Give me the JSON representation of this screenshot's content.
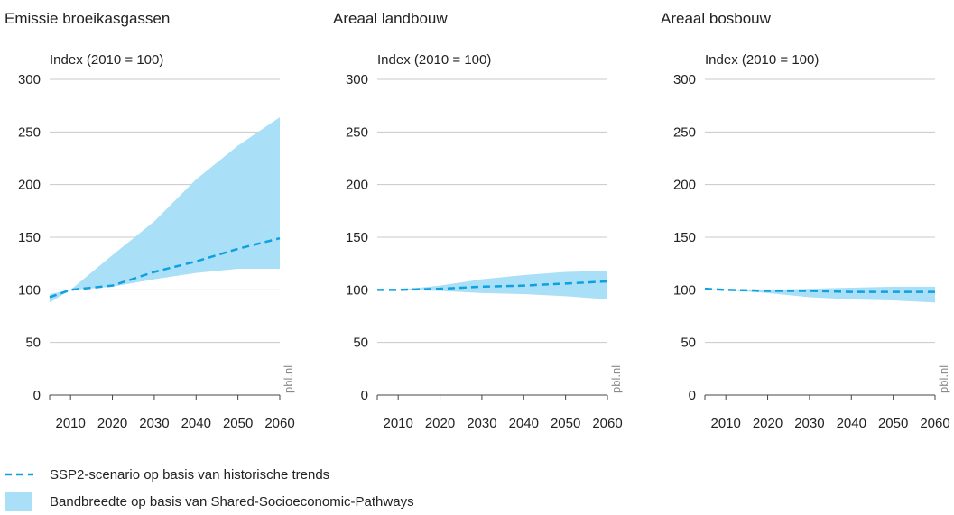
{
  "colors": {
    "band": "#a9dff7",
    "line": "#0fa1df",
    "grid": "#c8c8c8",
    "axis": "#444444",
    "text": "#222222",
    "source": "#8a8a8a"
  },
  "source_label": "pbl.nl",
  "legend": {
    "position": "bottom-left",
    "line_label": "SSP2-scenario op basis van historische trends",
    "band_label": "Bandbreedte op basis van Shared-Socioeconomic-Pathways"
  },
  "chart_data": [
    {
      "type": "line",
      "title": "Emissie broeikasgassen",
      "ylabel": "Index (2010 = 100)",
      "ylim": [
        0,
        300
      ],
      "yticks": [
        0,
        50,
        100,
        150,
        200,
        250,
        300
      ],
      "xlim": [
        2005,
        2060
      ],
      "xticks": [
        2010,
        2020,
        2030,
        2040,
        2050,
        2060
      ],
      "grid": true,
      "x": [
        2005,
        2010,
        2020,
        2030,
        2040,
        2050,
        2060
      ],
      "series": [
        {
          "name": "SSP2-scenario op basis van historische trends",
          "kind": "dashed-line",
          "values": [
            93,
            100,
            104,
            117,
            127,
            139,
            149
          ]
        },
        {
          "name": "Bandbreedte op basis van Shared-Socioeconomic-Pathways",
          "kind": "band",
          "lower": [
            88,
            100,
            103,
            110,
            116,
            120,
            120
          ],
          "upper": [
            96,
            100,
            133,
            165,
            205,
            237,
            264
          ]
        }
      ]
    },
    {
      "type": "line",
      "title": "Areaal landbouw",
      "ylabel": "Index (2010 = 100)",
      "ylim": [
        0,
        300
      ],
      "yticks": [
        0,
        50,
        100,
        150,
        200,
        250,
        300
      ],
      "xlim": [
        2005,
        2060
      ],
      "xticks": [
        2010,
        2020,
        2030,
        2040,
        2050,
        2060
      ],
      "grid": true,
      "x": [
        2005,
        2010,
        2020,
        2030,
        2040,
        2050,
        2060
      ],
      "series": [
        {
          "name": "SSP2-scenario op basis van historische trends",
          "kind": "dashed-line",
          "values": [
            100,
            100,
            101,
            103,
            104,
            106,
            108
          ]
        },
        {
          "name": "Bandbreedte op basis van Shared-Socioeconomic-Pathways",
          "kind": "band",
          "lower": [
            100,
            100,
            99,
            97,
            96,
            94,
            91
          ],
          "upper": [
            100,
            100,
            104,
            110,
            114,
            117,
            118
          ]
        }
      ]
    },
    {
      "type": "line",
      "title": "Areaal bosbouw",
      "ylabel": "Index (2010 = 100)",
      "ylim": [
        0,
        300
      ],
      "yticks": [
        0,
        50,
        100,
        150,
        200,
        250,
        300
      ],
      "xlim": [
        2005,
        2060
      ],
      "xticks": [
        2010,
        2020,
        2030,
        2040,
        2050,
        2060
      ],
      "grid": true,
      "x": [
        2005,
        2010,
        2020,
        2030,
        2040,
        2050,
        2060
      ],
      "series": [
        {
          "name": "SSP2-scenario op basis van historische trends",
          "kind": "dashed-line",
          "values": [
            101,
            100,
            99,
            99,
            98,
            98,
            98
          ]
        },
        {
          "name": "Bandbreedte op basis van Shared-Socioeconomic-Pathways",
          "kind": "band",
          "lower": [
            100,
            100,
            97,
            93,
            91,
            90,
            88
          ],
          "upper": [
            101,
            100,
            100,
            101,
            102,
            103,
            103
          ]
        }
      ]
    }
  ]
}
